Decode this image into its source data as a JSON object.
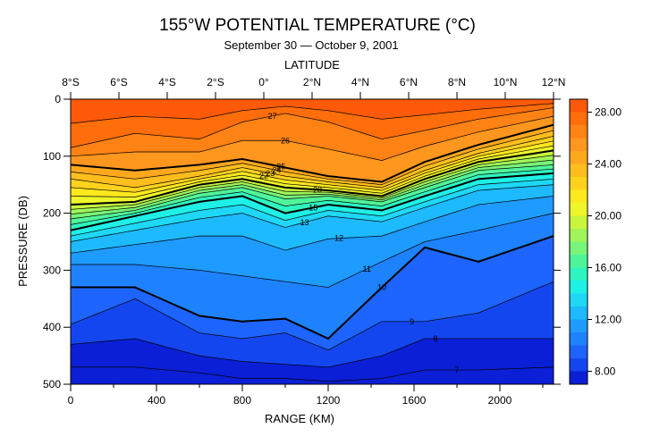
{
  "chart_data": {
    "type": "heatmap",
    "title": "155°W POTENTIAL TEMPERATURE (°C)",
    "subtitle": "September 30 — October 9, 2001",
    "top_axis_label": "LATITUDE",
    "top_ticks": [
      "8°S",
      "6°S",
      "4°S",
      "2°S",
      "0°",
      "2°N",
      "4°N",
      "6°N",
      "8°N",
      "10°N",
      "12°N"
    ],
    "top_tick_range_km": [
      0,
      2250
    ],
    "xlabel": "RANGE (KM)",
    "ylabel": "PRESSURE (DB)",
    "xlim": [
      0,
      2250
    ],
    "ylim": [
      500,
      0
    ],
    "x_ticks": [
      0,
      400,
      800,
      1200,
      1600,
      2000
    ],
    "y_ticks": [
      0,
      100,
      200,
      300,
      400,
      500
    ],
    "colorbar_ticks": [
      "8.00",
      "12.00",
      "16.00",
      "20.00",
      "24.00",
      "28.00"
    ],
    "colorbar_range": [
      7,
      29
    ],
    "contour_interval": 1,
    "contour_labels": [
      "27",
      "26",
      "25",
      "24",
      "23",
      "22",
      "20",
      "15",
      "13",
      "12",
      "11",
      "10",
      "9",
      "8",
      "7"
    ],
    "depth_profile_km": [
      0,
      300,
      600,
      800,
      1000,
      1200,
      1450,
      1650,
      1900,
      2250
    ],
    "depth_profile": [
      {
        "t": 29,
        "d": [
          0,
          0,
          0,
          0,
          0,
          0,
          0,
          0,
          0,
          0
        ]
      },
      {
        "t": 27,
        "d": [
          85,
          60,
          70,
          40,
          25,
          40,
          70,
          55,
          35,
          15
        ]
      },
      {
        "t": 25,
        "d": [
          115,
          125,
          115,
          105,
          120,
          135,
          145,
          110,
          80,
          45
        ]
      },
      {
        "t": 23,
        "d": [
          140,
          155,
          135,
          120,
          135,
          145,
          155,
          125,
          95,
          65
        ]
      },
      {
        "t": 20,
        "d": [
          185,
          180,
          150,
          140,
          155,
          160,
          170,
          140,
          110,
          90
        ]
      },
      {
        "t": 17,
        "d": [
          210,
          195,
          165,
          155,
          175,
          170,
          180,
          155,
          125,
          115
        ]
      },
      {
        "t": 15,
        "d": [
          230,
          205,
          180,
          170,
          200,
          185,
          195,
          170,
          140,
          130
        ]
      },
      {
        "t": 13,
        "d": [
          250,
          230,
          210,
          200,
          225,
          205,
          215,
          190,
          160,
          150
        ]
      },
      {
        "t": 12,
        "d": [
          270,
          255,
          240,
          240,
          265,
          245,
          240,
          215,
          185,
          170
        ]
      },
      {
        "t": 11,
        "d": [
          290,
          290,
          300,
          310,
          320,
          330,
          285,
          250,
          230,
          200
        ]
      },
      {
        "t": 10,
        "d": [
          330,
          330,
          380,
          390,
          385,
          420,
          330,
          260,
          285,
          240
        ]
      },
      {
        "t": 9,
        "d": [
          395,
          350,
          410,
          420,
          410,
          440,
          390,
          390,
          375,
          320
        ]
      },
      {
        "t": 8,
        "d": [
          430,
          420,
          450,
          460,
          465,
          470,
          450,
          420,
          420,
          420
        ]
      },
      {
        "t": 7,
        "d": [
          470,
          470,
          480,
          490,
          490,
          495,
          490,
          475,
          475,
          470
        ]
      },
      {
        "t": 6.5,
        "d": [
          500,
          500,
          500,
          500,
          500,
          500,
          500,
          500,
          500,
          500
        ]
      }
    ],
    "colors": {
      "7": "#0a1fd6",
      "8": "#1446f0",
      "9": "#1e64ff",
      "10": "#1e82ff",
      "11": "#1e9bff",
      "12": "#1ebaff",
      "13": "#1ed8f5",
      "14": "#1ef0e6",
      "15": "#2ef5c0",
      "16": "#50f59a",
      "17": "#78f578",
      "18": "#a0f55a",
      "19": "#c8f53c",
      "20": "#eef52a",
      "21": "#ffe81e",
      "22": "#ffd21e",
      "23": "#ffbe1e",
      "24": "#ffa81e",
      "25": "#ff961e",
      "26": "#ff8214",
      "27": "#ff6e0a",
      "28": "#ff5a0a"
    }
  }
}
